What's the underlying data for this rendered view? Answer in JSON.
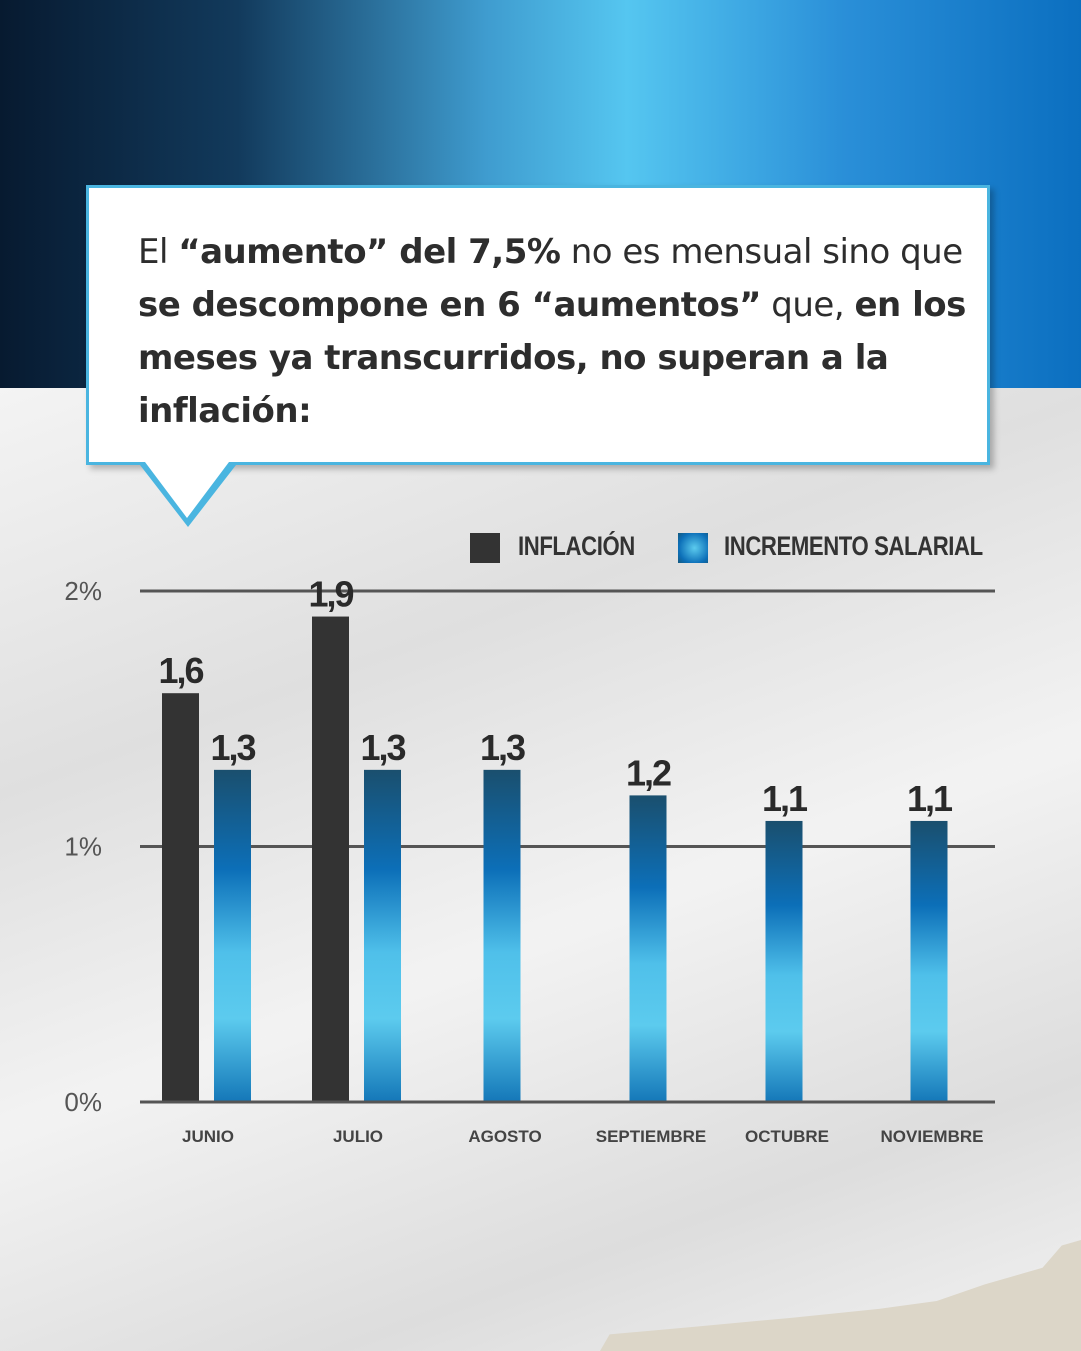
{
  "headline": {
    "parts": [
      {
        "text": "El ",
        "bold": false
      },
      {
        "text": "“aumento” del 7,5%",
        "bold": true
      },
      {
        "text": " no es mensual sino que ",
        "bold": false
      },
      {
        "text": "se descompone en 6 “aumentos”",
        "bold": true
      },
      {
        "text": " que, ",
        "bold": false
      },
      {
        "text": "en los meses ya transcurridos, no superan a la inflación:",
        "bold": true
      }
    ]
  },
  "legend": {
    "inflation": "INFLACIÓN",
    "salary": "INCREMENTO SALARIAL"
  },
  "colors": {
    "inflation": "#333333",
    "salary_dark": "#15597f",
    "salary_mid": "#0c6fb8",
    "salary_light": "#5ccbee",
    "bubble_border": "#4ab5e0"
  },
  "chart_data": {
    "type": "bar",
    "categories": [
      "JUNIO",
      "JULIO",
      "AGOSTO",
      "SEPTIEMBRE",
      "OCTUBRE",
      "NOVIEMBRE"
    ],
    "series": [
      {
        "name": "INFLACIÓN",
        "values": [
          1.6,
          1.9,
          null,
          null,
          null,
          null
        ],
        "labels": [
          "1,6",
          "1,9",
          "",
          "",
          "",
          ""
        ]
      },
      {
        "name": "INCREMENTO SALARIAL",
        "values": [
          1.3,
          1.3,
          1.3,
          1.2,
          1.1,
          1.1
        ],
        "labels": [
          "1,3",
          "1,3",
          "1,3",
          "1,2",
          "1,1",
          "1,1"
        ]
      }
    ],
    "yticks": [
      "0%",
      "1%",
      "2%"
    ],
    "ylim": [
      0,
      2
    ],
    "grid": true,
    "legend_position": "top-right"
  }
}
